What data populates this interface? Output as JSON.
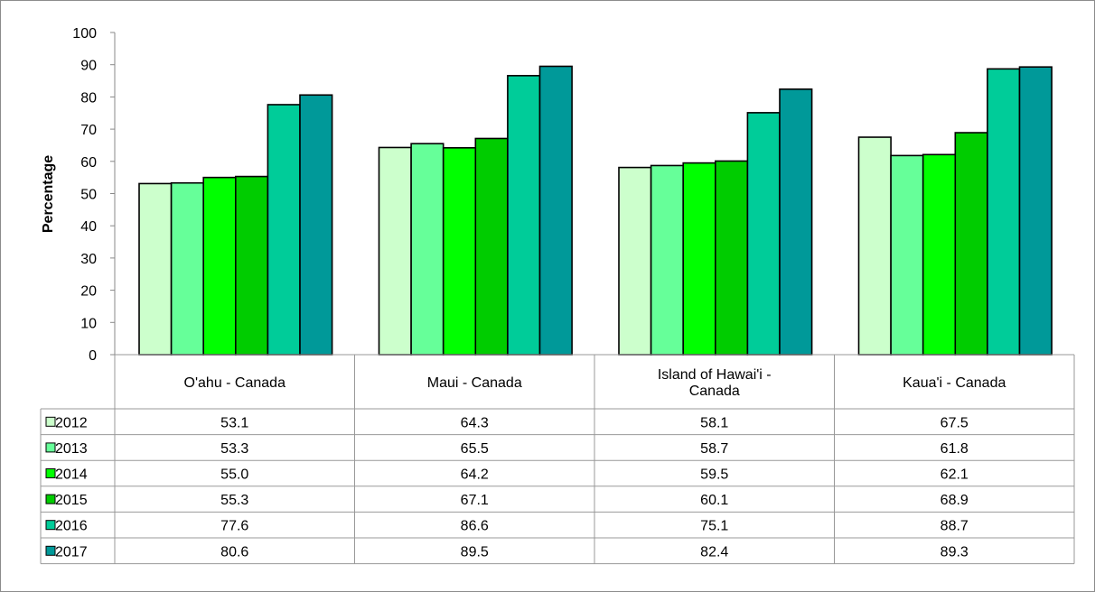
{
  "chart_data": {
    "type": "bar",
    "ylabel": "Percentage",
    "ylim": [
      0,
      100
    ],
    "yticks": [
      "0",
      "10",
      "20",
      "30",
      "40",
      "50",
      "60",
      "70",
      "80",
      "90",
      "100"
    ],
    "categories": [
      "O'ahu - Canada",
      "Maui - Canada",
      "Island of Hawai'i - Canada",
      "Kaua'i - Canada"
    ],
    "category_lines": [
      [
        "O'ahu - Canada"
      ],
      [
        "Maui - Canada"
      ],
      [
        "Island of Hawai'i -",
        "Canada"
      ],
      [
        "Kaua'i - Canada"
      ]
    ],
    "series": [
      {
        "name": "2012",
        "color": "#ccffcc",
        "values": [
          53.1,
          64.3,
          58.1,
          67.5
        ],
        "labels": [
          "53.1",
          "64.3",
          "58.1",
          "67.5"
        ]
      },
      {
        "name": "2013",
        "color": "#66ff99",
        "values": [
          53.3,
          65.5,
          58.7,
          61.8
        ],
        "labels": [
          "53.3",
          "65.5",
          "58.7",
          "61.8"
        ]
      },
      {
        "name": "2014",
        "color": "#00ff00",
        "values": [
          55.0,
          64.2,
          59.5,
          62.1
        ],
        "labels": [
          "55.0",
          "64.2",
          "59.5",
          "62.1"
        ]
      },
      {
        "name": "2015",
        "color": "#00cc00",
        "values": [
          55.3,
          67.1,
          60.1,
          68.9
        ],
        "labels": [
          "55.3",
          "67.1",
          "60.1",
          "68.9"
        ]
      },
      {
        "name": "2016",
        "color": "#00cc99",
        "values": [
          77.6,
          86.6,
          75.1,
          88.7
        ],
        "labels": [
          "77.6",
          "86.6",
          "75.1",
          "88.7"
        ]
      },
      {
        "name": "2017",
        "color": "#009999",
        "values": [
          80.6,
          89.5,
          82.4,
          89.3
        ],
        "labels": [
          "80.6",
          "89.5",
          "82.4",
          "89.3"
        ]
      }
    ],
    "legend": "data-table",
    "grid": false
  }
}
